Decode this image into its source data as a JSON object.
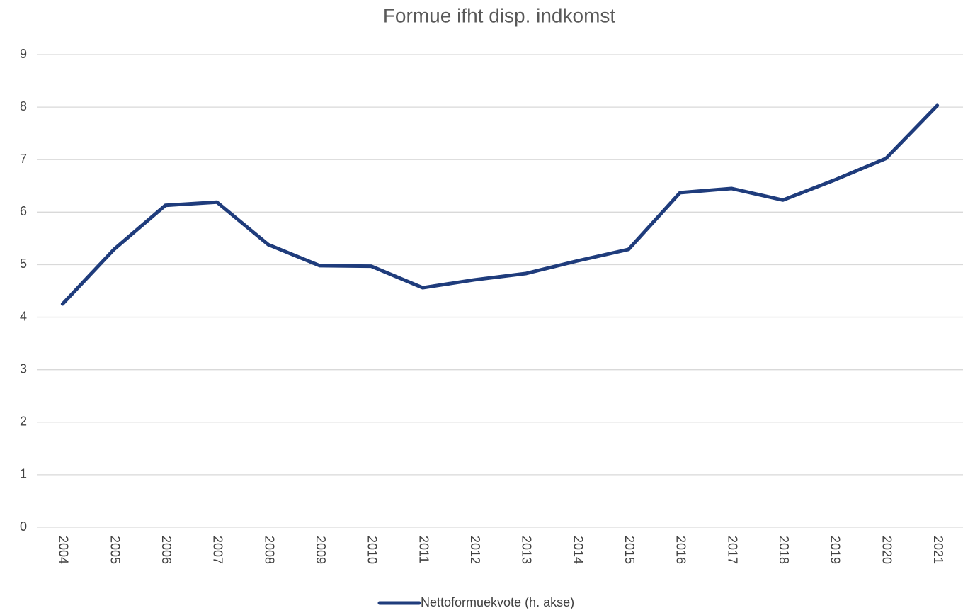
{
  "chart_data": {
    "type": "line",
    "title": "Formue ifht disp. indkomst",
    "categories": [
      "2004",
      "2005",
      "2006",
      "2007",
      "2008",
      "2009",
      "2010",
      "2011",
      "2012",
      "2013",
      "2014",
      "2015",
      "2016",
      "2017",
      "2018",
      "2019",
      "2020",
      "2021"
    ],
    "series": [
      {
        "name": "Nettoformuekvote (h. akse)",
        "color": "#1f3c7c",
        "values": [
          4.25,
          5.29,
          6.13,
          6.19,
          5.38,
          4.98,
          4.97,
          4.56,
          4.71,
          4.83,
          5.07,
          5.29,
          6.37,
          6.45,
          6.23,
          6.61,
          7.02,
          8.03
        ]
      }
    ],
    "ylim": [
      0,
      9
    ],
    "yticks": [
      0,
      1,
      2,
      3,
      4,
      5,
      6,
      7,
      8,
      9
    ],
    "grid": true,
    "legend": "bottom"
  }
}
